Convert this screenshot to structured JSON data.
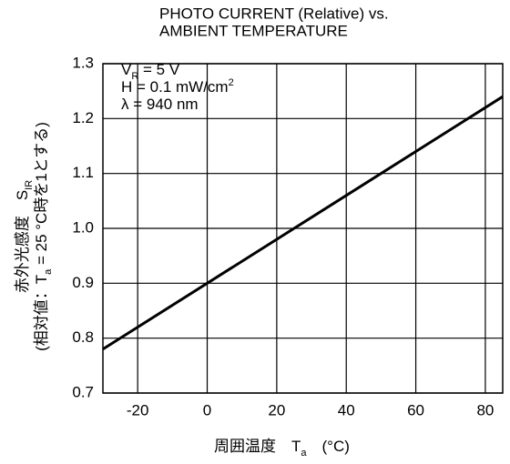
{
  "chart_data": {
    "type": "line",
    "title": [
      "PHOTO CURRENT (Relative) vs.",
      "AMBIENT TEMPERATURE"
    ],
    "annotations": [
      [
        {
          "text": "V"
        },
        {
          "text": "R",
          "shift": "sub"
        },
        {
          "text": " = 5 V"
        }
      ],
      [
        {
          "text": "H = 0.1 mW/cm"
        },
        {
          "text": "2",
          "shift": "super"
        }
      ],
      [
        {
          "text": "λ = 940 nm"
        }
      ]
    ],
    "x_label": [
      {
        "text": "周囲温度　T"
      },
      {
        "text": "a",
        "shift": "sub"
      },
      {
        "text": "　(°C)"
      }
    ],
    "y_label": [
      [
        {
          "text": "赤外光感度　S"
        },
        {
          "text": "IR",
          "shift": "sub"
        }
      ],
      [
        {
          "text": "(相対値：T"
        },
        {
          "text": "a",
          "shift": "sub"
        },
        {
          "text": " = 25 °C時を1とする)"
        }
      ]
    ],
    "x": [
      -30,
      85
    ],
    "series": [
      {
        "color": "#000000",
        "values": [
          0.78,
          1.24
        ]
      }
    ],
    "xlim": [
      -30,
      85
    ],
    "xticks": [
      -20,
      0,
      20,
      40,
      60,
      80
    ],
    "ylim": [
      0.7,
      1.3
    ],
    "yticks": [
      0.7,
      0.8,
      0.9,
      {
        "value": 1,
        "label": "1.0"
      },
      1.1,
      1.2,
      1.3
    ],
    "grid": true
  }
}
